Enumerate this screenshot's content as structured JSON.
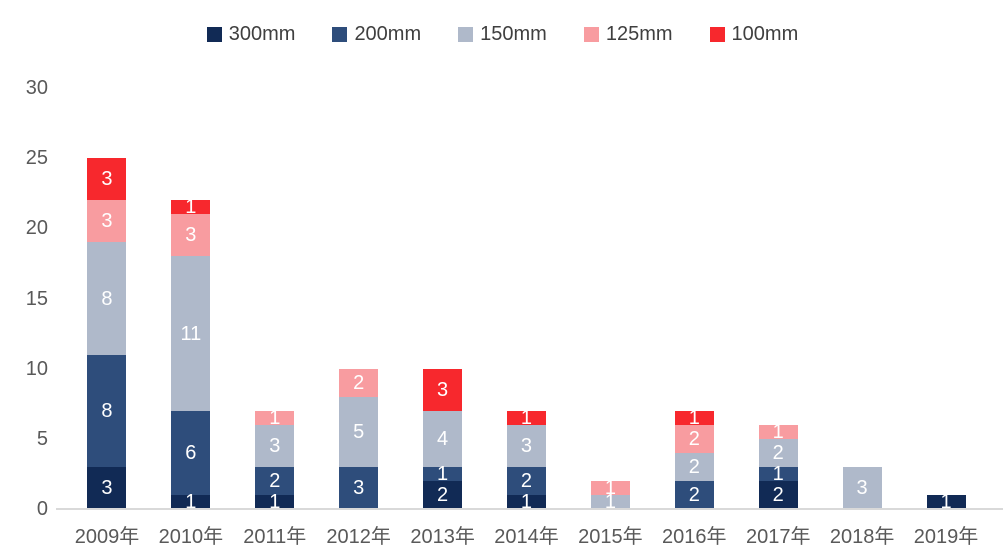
{
  "chart_data": {
    "type": "bar",
    "stacked": true,
    "title": "",
    "categories": [
      "2009年",
      "2010年",
      "2011年",
      "2012年",
      "2013年",
      "2014年",
      "2015年",
      "2016年",
      "2017年",
      "2018年",
      "2019年"
    ],
    "series": [
      {
        "name": "300mm",
        "color": "#112A55",
        "values": [
          3,
          1,
          1,
          0,
          2,
          1,
          0,
          0,
          2,
          0,
          1
        ]
      },
      {
        "name": "200mm",
        "color": "#2E4D7B",
        "values": [
          8,
          6,
          2,
          3,
          1,
          2,
          0,
          2,
          1,
          0,
          0
        ]
      },
      {
        "name": "150mm",
        "color": "#AFB9CA",
        "values": [
          8,
          11,
          3,
          5,
          4,
          3,
          1,
          2,
          2,
          3,
          0
        ]
      },
      {
        "name": "125mm",
        "color": "#F89CA0",
        "values": [
          3,
          3,
          1,
          2,
          0,
          0,
          1,
          2,
          1,
          0,
          0
        ]
      },
      {
        "name": "100mm",
        "color": "#F7282D",
        "values": [
          3,
          1,
          0,
          0,
          3,
          1,
          0,
          1,
          0,
          0,
          0
        ]
      }
    ],
    "totals": [
      25,
      22,
      7,
      10,
      10,
      7,
      2,
      7,
      6,
      3,
      1
    ],
    "ylim": [
      0,
      30
    ],
    "yticks": [
      0,
      5,
      10,
      15,
      20,
      25,
      30
    ],
    "legend_position": "top",
    "grid": false,
    "value_labels": "shown in white on every nonzero segment"
  },
  "style": {
    "axis_text_color": "#595959",
    "legend_text_color": "#3F3F3F",
    "baseline_color": "#D9D9D9",
    "value_label_color": "#FFFFFF",
    "background": "#FFFFFF"
  }
}
